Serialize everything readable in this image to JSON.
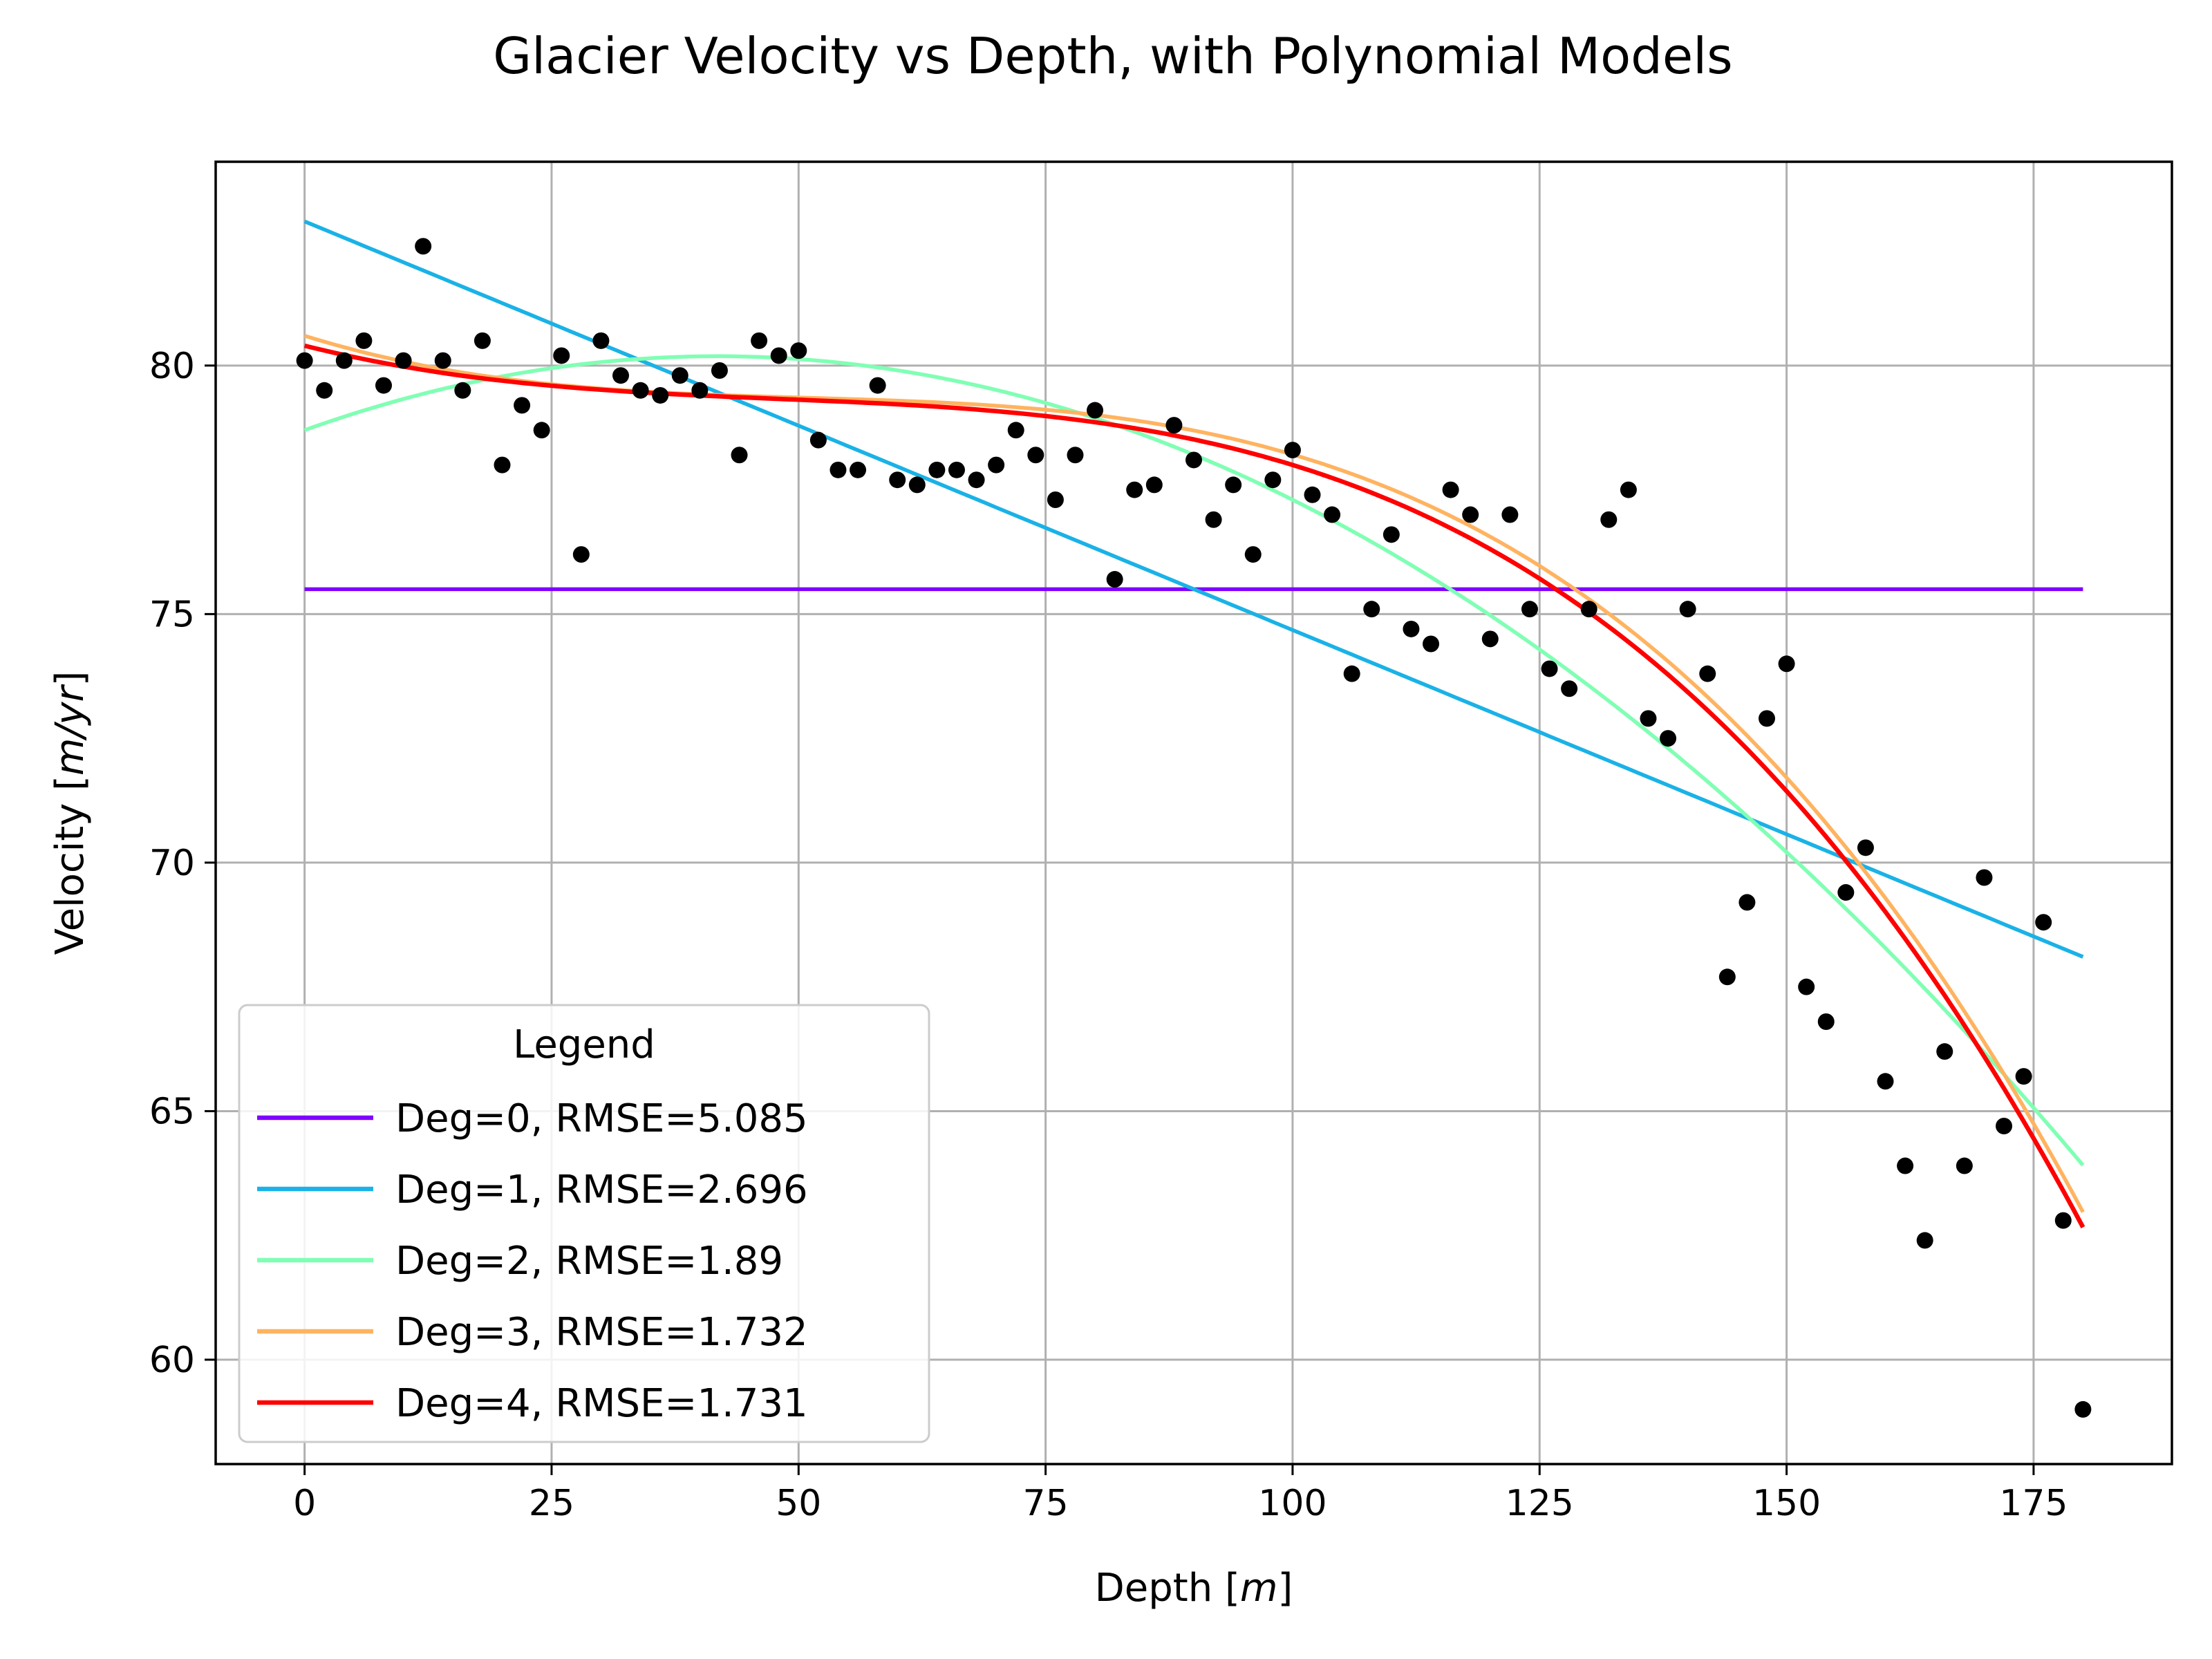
{
  "chart_data": {
    "type": "scatter",
    "title": "Glacier Velocity vs Depth, with Polynomial Models",
    "xlabel_pre": "Depth [",
    "xlabel_unit": "m",
    "xlabel_post": "]",
    "ylabel_pre": "Velocity [",
    "ylabel_unit": "m/yr",
    "ylabel_post": "]",
    "xlim": [
      -9,
      189
    ],
    "ylim": [
      57.9,
      84.1
    ],
    "xticks": [
      0,
      25,
      50,
      75,
      100,
      125,
      150,
      175
    ],
    "yticks": [
      60,
      65,
      70,
      75,
      80
    ],
    "grid": true,
    "legend_title": "Legend",
    "legend_position": "lower-left",
    "points": {
      "color": "#000000",
      "x": [
        0,
        2,
        4,
        6,
        8,
        10,
        12,
        14,
        16,
        18,
        20,
        22,
        24,
        26,
        28,
        30,
        32,
        34,
        36,
        38,
        40,
        42,
        44,
        46,
        48,
        50,
        52,
        54,
        56,
        58,
        60,
        62,
        64,
        66,
        68,
        70,
        72,
        74,
        76,
        78,
        80,
        82,
        84,
        86,
        88,
        90,
        92,
        94,
        96,
        98,
        100,
        102,
        104,
        106,
        108,
        110,
        112,
        114,
        116,
        118,
        120,
        122,
        124,
        126,
        128,
        130,
        132,
        134,
        136,
        138,
        140,
        142,
        144,
        146,
        148,
        150,
        152,
        154,
        156,
        158,
        160,
        162,
        164,
        166,
        168,
        170,
        172,
        174,
        176,
        178,
        180
      ],
      "y": [
        80.1,
        79.5,
        80.1,
        80.5,
        79.6,
        80.1,
        82.4,
        80.1,
        79.5,
        80.5,
        78.0,
        79.2,
        78.7,
        80.2,
        76.2,
        80.5,
        79.8,
        79.5,
        79.4,
        79.8,
        79.5,
        79.9,
        78.2,
        80.5,
        80.2,
        80.3,
        78.5,
        77.9,
        77.9,
        79.6,
        77.7,
        77.6,
        77.9,
        77.9,
        77.7,
        78.0,
        78.7,
        78.2,
        77.3,
        78.2,
        79.1,
        75.7,
        77.5,
        77.6,
        78.8,
        78.1,
        76.9,
        77.6,
        76.2,
        77.7,
        78.3,
        77.4,
        77.0,
        73.8,
        75.1,
        76.6,
        74.7,
        74.4,
        77.5,
        77.0,
        74.5,
        77.0,
        75.1,
        73.9,
        73.5,
        75.1,
        76.9,
        77.5,
        72.9,
        72.5,
        75.1,
        73.8,
        67.7,
        69.2,
        72.9,
        74.0,
        67.5,
        66.8,
        69.4,
        70.3,
        65.6,
        63.9,
        62.4,
        66.2,
        63.9,
        69.7,
        64.7,
        65.7,
        68.8,
        62.8,
        59.0
      ]
    },
    "series": [
      {
        "name": "Deg=0, RMSE=5.085",
        "color": "#8000ff",
        "coef": [
          75.5
        ]
      },
      {
        "name": "Deg=1, RMSE=2.696",
        "color": "#1ab2e6",
        "coef": [
          82.9,
          -0.0822
        ]
      },
      {
        "name": "Deg=2, RMSE=1.89",
        "color": "#80ffb4",
        "coef": [
          78.7,
          0.0712,
          -0.000852
        ]
      },
      {
        "name": "Deg=3, RMSE=1.732",
        "color": "#ffb360",
        "coef": [
          80.6,
          -0.0622,
          0.00111,
          -7.27e-06
        ]
      },
      {
        "name": "Deg=4, RMSE=1.731",
        "color": "#ff0000",
        "coef": [
          80.4,
          -0.05,
          0.00085,
          -5.5e-06,
          -4e-09
        ]
      }
    ]
  }
}
